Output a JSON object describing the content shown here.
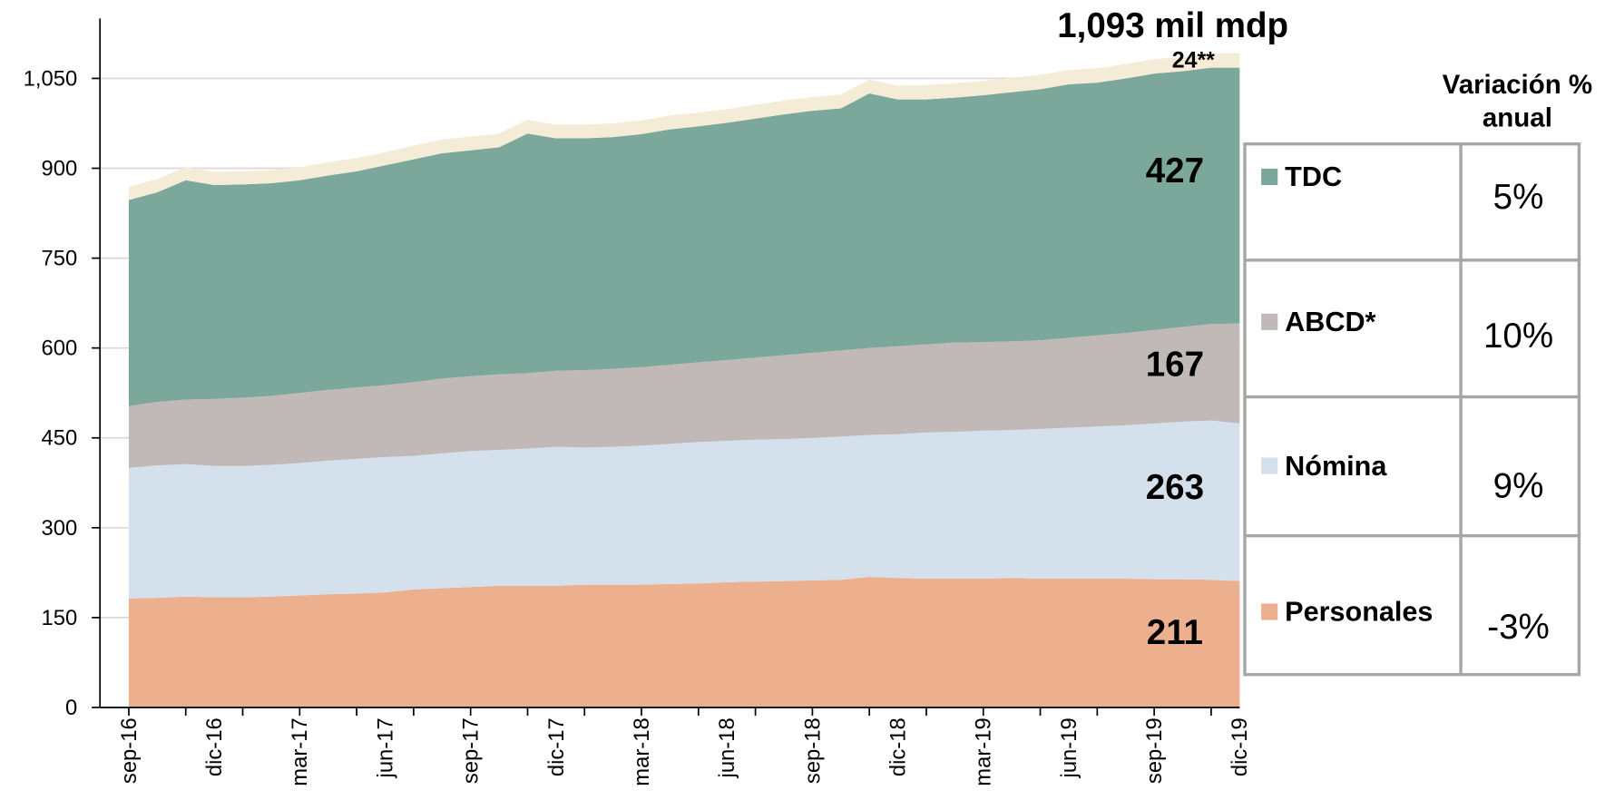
{
  "chart_data": {
    "type": "stacked_area",
    "total_label": "1,093 mil mdp",
    "categories": [
      "sep-16",
      null,
      null,
      "dic-16",
      null,
      null,
      "mar-17",
      null,
      null,
      "jun-17",
      null,
      null,
      "sep-17",
      null,
      null,
      "dic-17",
      null,
      null,
      "mar-18",
      null,
      null,
      "jun-18",
      null,
      null,
      "sep-18",
      null,
      null,
      "dic-18",
      null,
      null,
      "mar-19",
      null,
      null,
      "jun-19",
      null,
      null,
      "sep-19",
      null,
      null,
      "dic-19"
    ],
    "ylim": [
      0,
      1150
    ],
    "yticks": [
      0,
      150,
      300,
      450,
      600,
      750,
      900,
      {
        "value": 1050,
        "label": "1,050"
      }
    ],
    "grid": true,
    "table_header": "Variación % anual",
    "series": [
      {
        "name": "Personales",
        "color": "#edb08e",
        "annual_change": "-3%",
        "values": [
          182,
          183,
          185,
          184,
          184,
          185,
          187,
          189,
          190,
          192,
          197,
          199,
          201,
          203,
          203,
          203,
          205,
          205,
          205,
          206,
          207,
          209,
          210,
          211,
          212,
          213,
          218,
          216,
          215,
          215,
          215,
          216,
          215,
          215,
          215,
          215,
          214,
          214,
          213,
          211
        ]
      },
      {
        "name": "Nómina",
        "color": "#d4e1ec",
        "annual_change": "9%",
        "values": [
          218,
          221,
          221,
          219,
          219,
          220,
          221,
          223,
          225,
          226,
          223,
          225,
          227,
          227,
          229,
          232,
          229,
          230,
          232,
          234,
          236,
          236,
          237,
          237,
          238,
          239,
          237,
          240,
          244,
          245,
          247,
          247,
          250,
          252,
          254,
          256,
          260,
          263,
          266,
          263
        ]
      },
      {
        "name": "ABCD*",
        "color": "#c0b9b8",
        "annual_change": "10%",
        "values": [
          103,
          106,
          108,
          112,
          114,
          115,
          117,
          118,
          119,
          120,
          123,
          125,
          125,
          126,
          126,
          127,
          129,
          130,
          131,
          132,
          133,
          135,
          137,
          140,
          142,
          144,
          145,
          147,
          147,
          149,
          148,
          148,
          148,
          150,
          152,
          154,
          156,
          158,
          161,
          167
        ]
      },
      {
        "name": "TDC",
        "color": "#7ba89b",
        "annual_change": "5%",
        "values": [
          344,
          350,
          366,
          357,
          356,
          355,
          355,
          358,
          361,
          367,
          372,
          376,
          377,
          379,
          400,
          388,
          387,
          387,
          389,
          393,
          394,
          396,
          399,
          402,
          404,
          404,
          425,
          412,
          409,
          409,
          412,
          416,
          419,
          423,
          422,
          425,
          428,
          427,
          428,
          427
        ]
      },
      {
        "color": "#f5ecd8",
        "values": [
          22,
          22,
          22,
          22,
          22,
          22,
          22,
          22,
          22,
          22,
          23,
          23,
          23,
          23,
          23,
          23,
          23,
          23,
          23,
          23,
          23,
          23,
          23,
          23,
          23,
          23,
          23,
          23,
          24,
          24,
          24,
          24,
          24,
          24,
          24,
          24,
          24,
          24,
          24,
          24
        ],
        "value_labels": [
          null,
          null,
          null,
          null,
          null,
          null,
          null,
          null,
          null,
          null,
          null,
          null,
          null,
          null,
          null,
          null,
          null,
          null,
          null,
          null,
          null,
          null,
          null,
          null,
          null,
          null,
          null,
          null,
          null,
          null,
          null,
          null,
          null,
          null,
          null,
          null,
          null,
          null,
          null,
          "24**"
        ]
      }
    ]
  }
}
